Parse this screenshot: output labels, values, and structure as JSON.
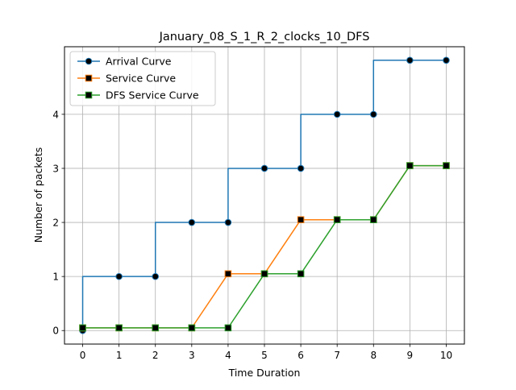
{
  "chart_data": {
    "type": "line",
    "title": "January_08_S_1_R_2_clocks_10_DFS",
    "xlabel": "Time Duration",
    "ylabel": "Number of packets",
    "x": [
      0,
      1,
      2,
      3,
      4,
      5,
      6,
      7,
      8,
      9,
      10
    ],
    "xticks": [
      0,
      1,
      2,
      3,
      4,
      5,
      6,
      7,
      8,
      9,
      10
    ],
    "yticks": [
      0,
      1,
      2,
      3,
      4
    ],
    "xlim": [
      -0.5,
      10.5
    ],
    "ylim": [
      -0.25,
      5.25
    ],
    "grid": true,
    "legend_position": "top-left",
    "series": [
      {
        "name": "Arrival Curve",
        "color": "#1f77b4",
        "marker": "circle",
        "step": true,
        "values": [
          0,
          1,
          1,
          2,
          2,
          3,
          3,
          4,
          4,
          5,
          5
        ]
      },
      {
        "name": "Service Curve",
        "color": "#ff7f0e",
        "marker": "square",
        "step": false,
        "values": [
          0.05,
          0.05,
          0.05,
          0.05,
          1.05,
          1.05,
          2.05,
          2.05,
          2.05,
          3.05,
          3.05
        ]
      },
      {
        "name": "DFS Service Curve",
        "color": "#2ca02c",
        "marker": "square",
        "step": false,
        "values": [
          0.05,
          0.05,
          0.05,
          0.05,
          0.05,
          1.05,
          1.05,
          2.05,
          2.05,
          3.05,
          3.05
        ]
      }
    ]
  }
}
